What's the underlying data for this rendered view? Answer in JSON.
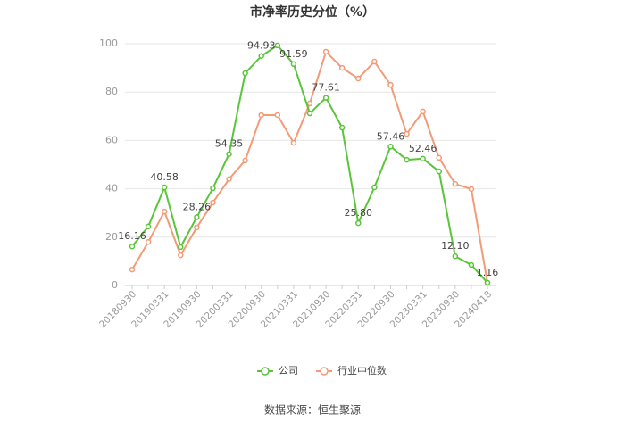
{
  "chart_data": {
    "type": "line",
    "title": "市净率历史分位（%）",
    "categories": [
      "20180930",
      null,
      "20190331",
      null,
      "20190930",
      null,
      "20200331",
      null,
      "20200930",
      null,
      "20210331",
      null,
      "20210930",
      null,
      "20220331",
      null,
      "20220930",
      null,
      "20230331",
      null,
      "20230930",
      null,
      "20240418"
    ],
    "series": [
      {
        "name": "公司",
        "color": "#5ac53a",
        "values": [
          16.16,
          24.4,
          40.58,
          15.9,
          28.26,
          40.2,
          54.35,
          87.8,
          94.93,
          99.3,
          91.59,
          71.2,
          77.61,
          65.3,
          25.8,
          40.6,
          57.46,
          52.0,
          52.46,
          47.2,
          12.1,
          8.5,
          1.16
        ],
        "value_labels": [
          "16.16",
          null,
          "40.58",
          null,
          "28.26",
          null,
          "54.35",
          null,
          "94.93",
          null,
          "91.59",
          null,
          "77.61",
          null,
          "25.80",
          null,
          "57.46",
          null,
          "52.46",
          null,
          "12.10",
          null,
          "1.16"
        ]
      },
      {
        "name": "行业中位数",
        "color": "#f29b76",
        "values": [
          6.6,
          18.0,
          30.6,
          12.5,
          24.0,
          34.3,
          44.0,
          51.7,
          70.5,
          70.5,
          59.0,
          75.3,
          96.7,
          90.0,
          85.6,
          92.6,
          83.0,
          62.7,
          72.0,
          52.8,
          42.0,
          39.9,
          1.1
        ]
      }
    ],
    "ylim": [
      0,
      100
    ],
    "yticks": [
      0,
      20,
      40,
      60,
      80,
      100
    ],
    "grid": true,
    "source": "数据来源：恒生聚源"
  }
}
